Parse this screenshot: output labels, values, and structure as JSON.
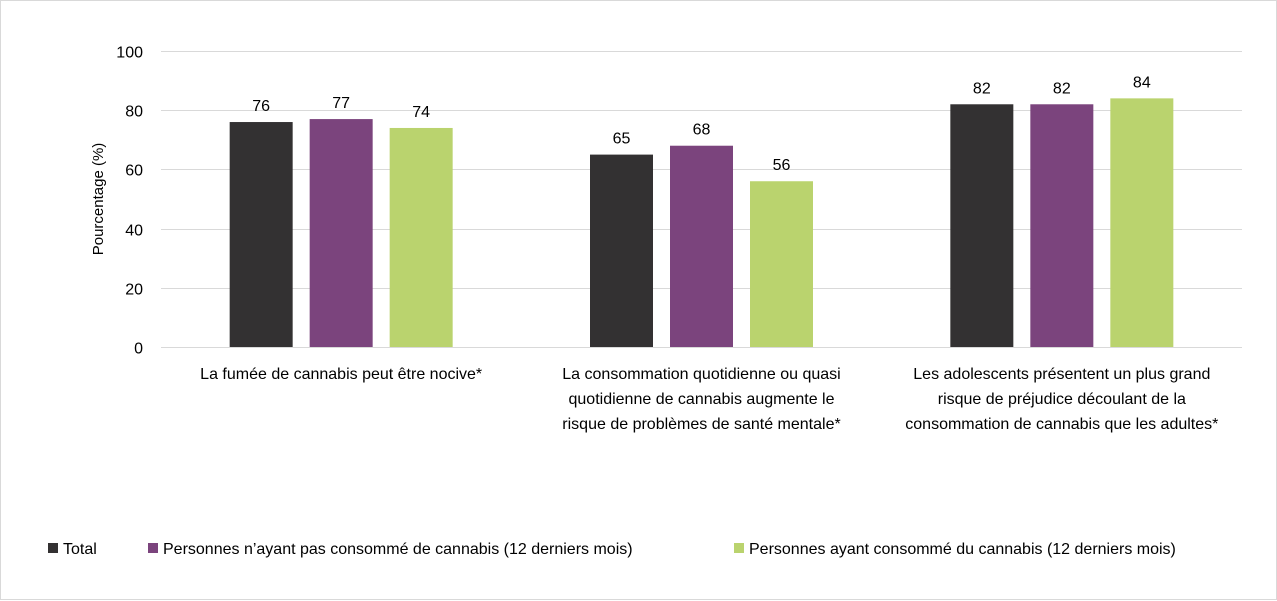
{
  "chart_data": {
    "type": "bar",
    "title": "",
    "xlabel": "",
    "ylabel": "Pourcentage (%)",
    "ylim": [
      0,
      100
    ],
    "yticks": [
      0,
      20,
      40,
      60,
      80,
      100
    ],
    "grid": true,
    "legend_position": "bottom",
    "categories": [
      [
        "La fumée de cannabis peut être nocive*"
      ],
      [
        "La consommation quotidienne ou quasi",
        "quotidienne de cannabis augmente le",
        "risque de problèmes de santé mentale*"
      ],
      [
        "Les adolescents présentent un plus grand",
        "risque de préjudice découlant de la",
        "consommation de cannabis que les adultes*"
      ]
    ],
    "series": [
      {
        "name": "Total",
        "color": "#333132",
        "values": [
          76,
          65,
          82
        ]
      },
      {
        "name": "Personnes n’ayant pas consommé de cannabis (12 derniers mois)",
        "color": "#7B447D",
        "values": [
          77,
          68,
          82
        ]
      },
      {
        "name": "Personnes ayant consommé du cannabis (12 derniers mois)",
        "color": "#BAD36E",
        "values": [
          74,
          56,
          84
        ]
      }
    ]
  }
}
